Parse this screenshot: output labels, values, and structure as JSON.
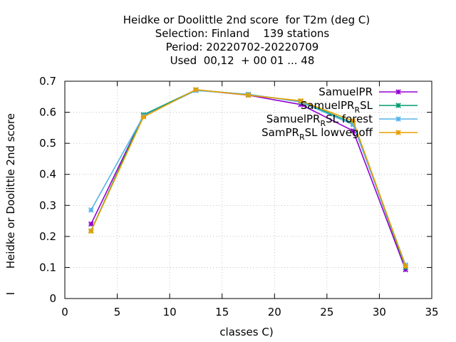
{
  "chart_data": {
    "type": "line",
    "title_lines": [
      "Heidke or Doolittle 2nd score  for T2m (deg C)",
      "Selection: Finland    139 stations",
      "Period: 20220702-20220709",
      "Used  00,12  + 00 01 ... 48"
    ],
    "xlabel": "classes C)",
    "ylabel": "Heidke or Doolittle 2nd score",
    "ylabel_extra": "I",
    "xlim": [
      0,
      35
    ],
    "ylim": [
      0,
      0.7
    ],
    "xticks": [
      0,
      5,
      10,
      15,
      20,
      25,
      30,
      35
    ],
    "yticks": [
      0,
      0.1,
      0.2,
      0.3,
      0.4,
      0.5,
      0.6,
      0.7
    ],
    "ytick_labels": [
      "0",
      "0.1",
      "0.2",
      "0.3",
      "0.4",
      "0.5",
      "0.6",
      "0.7"
    ],
    "grid": true,
    "legend_position": "top-right",
    "x": [
      2.5,
      7.5,
      12.5,
      17.5,
      22.5,
      27.5,
      32.5
    ],
    "series": [
      {
        "legend": {
          "base": "SamuelPR",
          "sub": "",
          "tail": ""
        },
        "color": "#9400d3",
        "values": [
          0.24,
          0.59,
          0.672,
          0.655,
          0.625,
          0.54,
          0.093
        ]
      },
      {
        "legend": {
          "base": "SamuelPR",
          "sub": "R",
          "tail": "SL"
        },
        "color": "#009e73",
        "values": [
          0.218,
          0.592,
          0.672,
          0.657,
          0.635,
          0.565,
          0.1
        ]
      },
      {
        "legend": {
          "base": "SamuelPR",
          "sub": "R",
          "tail": "SL forest"
        },
        "color": "#56b4e9",
        "values": [
          0.285,
          0.588,
          0.67,
          0.658,
          0.633,
          0.56,
          0.108
        ]
      },
      {
        "legend": {
          "base": "SamPR",
          "sub": "R",
          "tail": "SL lowvegoff"
        },
        "color": "#e69f00",
        "values": [
          0.217,
          0.585,
          0.673,
          0.655,
          0.637,
          0.572,
          0.104
        ]
      }
    ]
  }
}
